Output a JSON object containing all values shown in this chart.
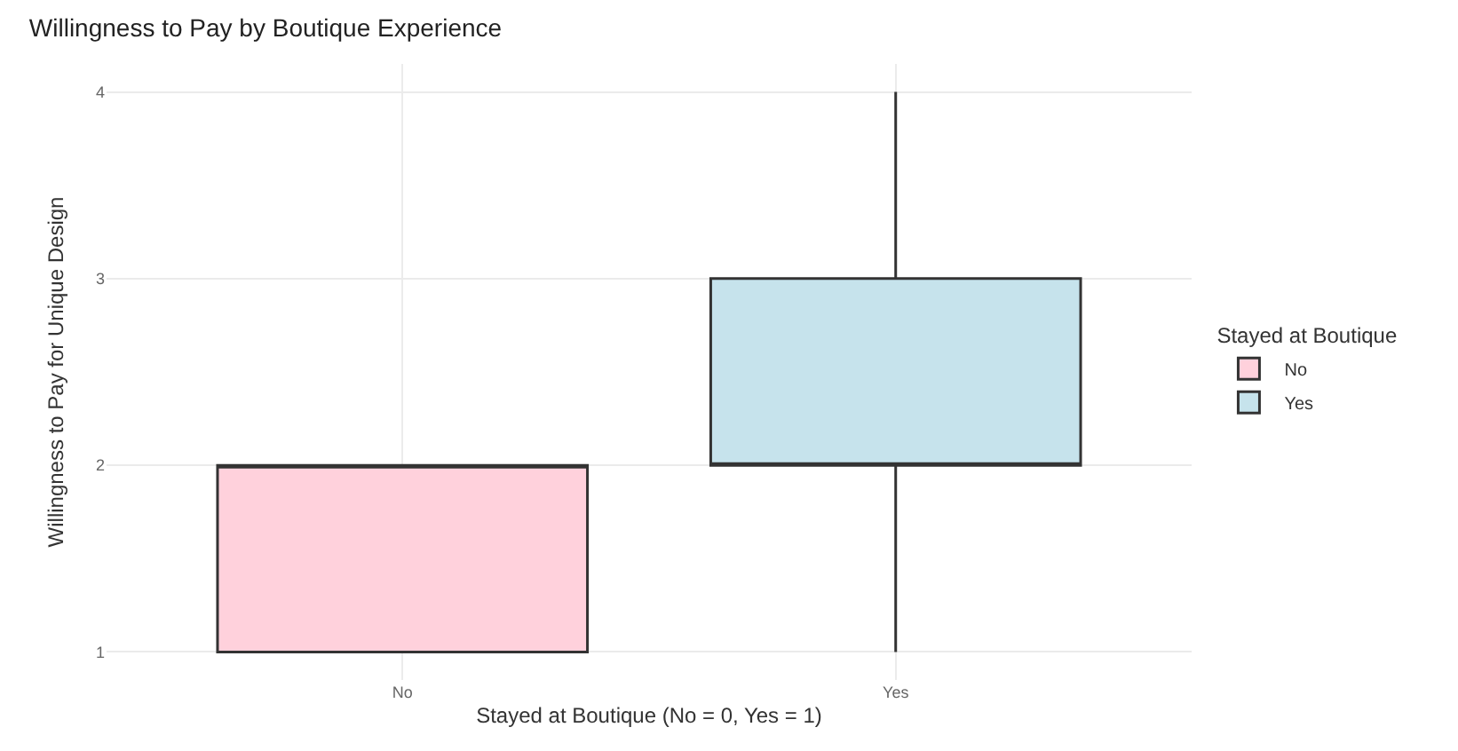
{
  "chart_data": {
    "type": "box",
    "title": "Willingness to Pay by Boutique Experience",
    "xlabel": "Stayed at Boutique (No = 0, Yes = 1)",
    "ylabel": "Willingness to Pay for Unique Design",
    "legend_title": "Stayed at Boutique",
    "categories": [
      "No",
      "Yes"
    ],
    "series": [
      {
        "name": "No",
        "color": "#ffd1dc",
        "boxes": [
          {
            "low": 1,
            "q1": 1,
            "median": 2,
            "q3": 2,
            "high": 2
          },
          null
        ]
      },
      {
        "name": "Yes",
        "color": "#c6e3ec",
        "boxes": [
          null,
          {
            "low": 1,
            "q1": 2,
            "median": 2,
            "q3": 3,
            "high": 4
          }
        ]
      }
    ],
    "ylim": [
      0.85,
      4.15
    ],
    "yticks": [
      1,
      2,
      3,
      4
    ],
    "grid": true,
    "legend": "right"
  }
}
